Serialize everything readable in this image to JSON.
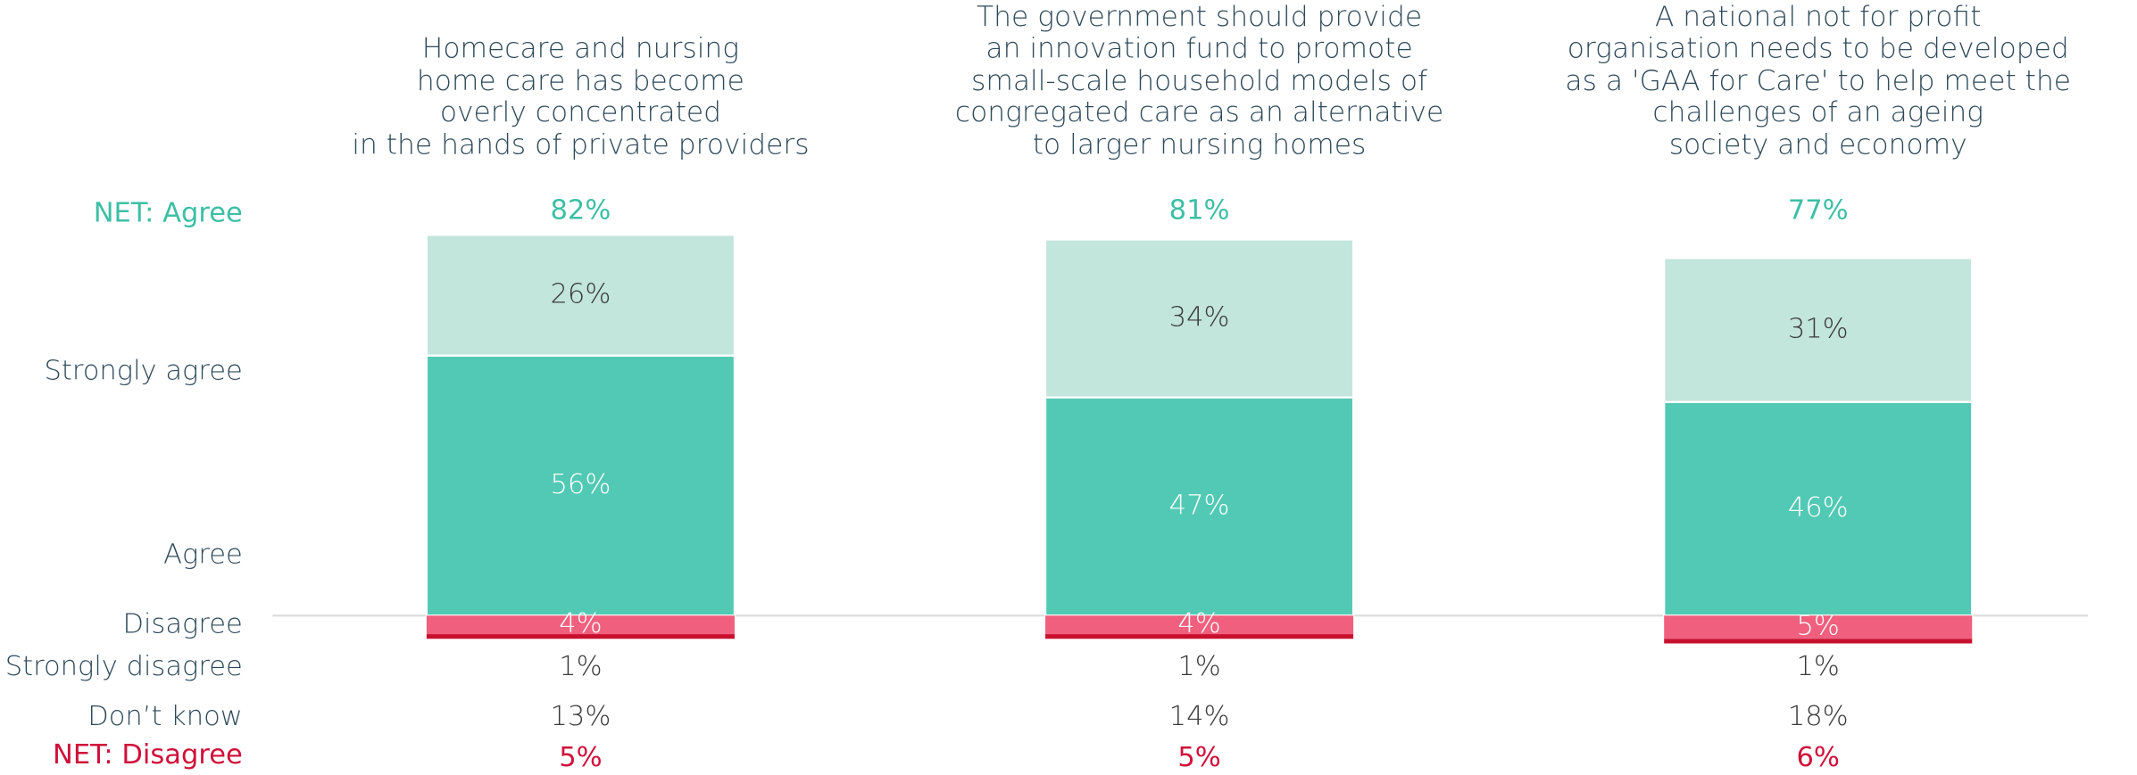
{
  "chart_data": {
    "type": "diverging_stacked_bar",
    "categories": [
      "Homecare and nursing\nhome care has become\noverly concentrated\nin the hands of private providers",
      "The government should provide\nan innovation fund to promote\nsmall-scale household models of\ncongregated care as an alternative\nto larger nursing homes",
      "A national not for profit\norganisation needs to be developed\nas a 'GAA for Care' to help meet the\nchallenges of an ageing\nsociety and economy"
    ],
    "net_agree": {
      "name": "NET: Agree",
      "color": "#3dbfa5",
      "values": [
        82,
        81,
        77
      ],
      "value_labels": [
        "82%",
        "81%",
        "77%"
      ]
    },
    "series": [
      {
        "name": "Strongly agree",
        "color": "#52c9b4",
        "side": "agree",
        "values": [
          56,
          47,
          46
        ],
        "value_labels": [
          "56%",
          "47%",
          "46%"
        ]
      },
      {
        "name": "Agree",
        "color": "#c2e5dc",
        "side": "agree",
        "values": [
          26,
          34,
          31
        ],
        "value_labels": [
          "26%",
          "34%",
          "31%"
        ]
      },
      {
        "name": "Disagree",
        "color": "#f0607e",
        "side": "disagree",
        "values": [
          4,
          4,
          5
        ],
        "value_labels": [
          "4%",
          "4%",
          "5%"
        ]
      },
      {
        "name": "Strongly disagree",
        "color": "#c8102e",
        "side": "disagree",
        "values": [
          1,
          1,
          1
        ],
        "value_labels": [
          "1%",
          "1%",
          "1%"
        ]
      },
      {
        "name": "Don’t know",
        "color": "#555555",
        "side": "none",
        "values": [
          13,
          14,
          18
        ],
        "value_labels": [
          "13%",
          "14%",
          "18%"
        ]
      }
    ],
    "net_disagree": {
      "name": "NET: Disagree",
      "color": "#d0103a",
      "values": [
        5,
        5,
        6
      ],
      "value_labels": [
        "5%",
        "5%",
        "6%"
      ]
    }
  }
}
